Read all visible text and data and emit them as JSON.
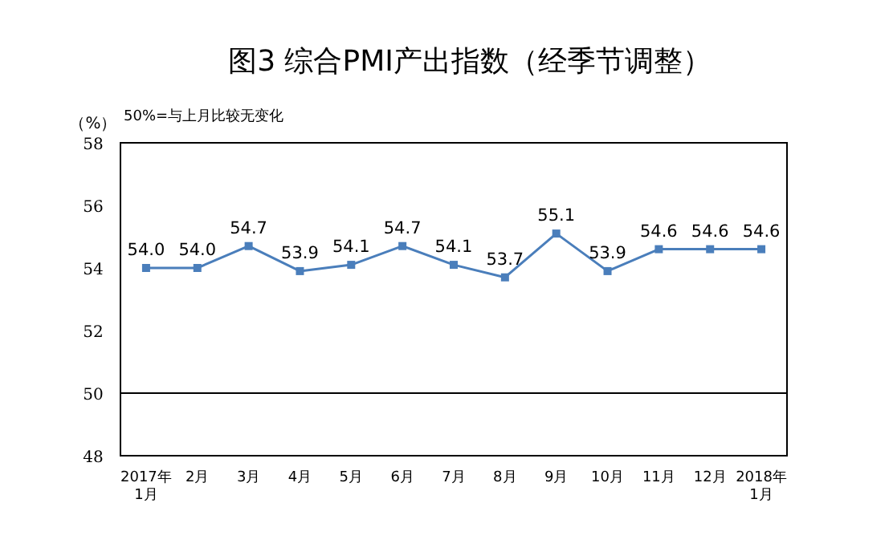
{
  "chart_data": {
    "type": "line",
    "title": "图3 综合PMI产出指数（经季节调整）",
    "ylabel": "（%）",
    "annotations": [
      "50%=与上月比较无变化"
    ],
    "categories": [
      "2017年\n1月",
      "2月",
      "3月",
      "4月",
      "5月",
      "6月",
      "7月",
      "8月",
      "9月",
      "10月",
      "11月",
      "12月",
      "2018年\n1月"
    ],
    "series": [
      {
        "color": "#4a7ebb",
        "values": [
          54.0,
          54.0,
          54.7,
          53.9,
          54.1,
          54.7,
          54.1,
          53.7,
          55.1,
          53.9,
          54.6,
          54.6,
          54.6
        ]
      }
    ],
    "value_labels": [
      "54.0",
      "54.0",
      "54.7",
      "53.9",
      "54.1",
      "54.7",
      "54.1",
      "53.7",
      "55.1",
      "53.9",
      "54.6",
      "54.6",
      "54.6"
    ],
    "ylim": [
      48,
      58
    ],
    "yticks": [
      48,
      50,
      52,
      54,
      56,
      58
    ],
    "marker": "square",
    "line_style": "solid",
    "grid": false,
    "ref_lines": [
      {
        "axis": "y",
        "value": 50,
        "color": "#000000"
      }
    ]
  }
}
